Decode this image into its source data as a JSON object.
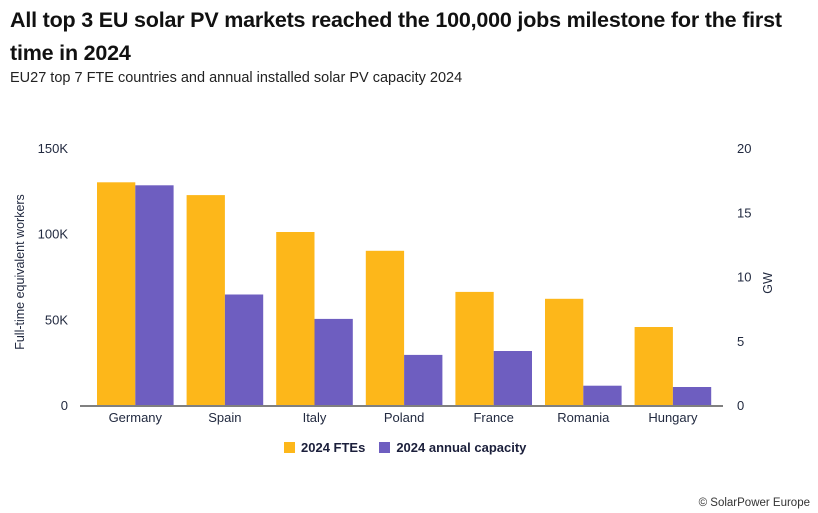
{
  "header": {
    "title": "All top 3 EU solar PV markets reached the 100,000 jobs milestone for the first time in 2024",
    "subtitle": "EU27 top 7 FTE countries and annual installed solar PV capacity 2024"
  },
  "credit": "© SolarPower Europe",
  "colors": {
    "fte": "#FDB71A",
    "capacity": "#6E5EC0",
    "baseline": "#808080"
  },
  "chart_data": {
    "type": "bar",
    "title": "EU27 top 7 FTE countries and annual installed solar PV capacity 2024",
    "categories": [
      "Germany",
      "Spain",
      "Italy",
      "Poland",
      "France",
      "Romania",
      "Hungary"
    ],
    "series": [
      {
        "name": "2024 FTEs",
        "axis": "left",
        "values": [
          130000,
          122500,
          101000,
          90000,
          66000,
          62000,
          45500
        ]
      },
      {
        "name": "2024 annual capacity",
        "axis": "right",
        "values": [
          17.1,
          8.6,
          6.7,
          3.9,
          4.2,
          1.5,
          1.4
        ]
      }
    ],
    "ylabel": "Full-time equivalent workers",
    "ylabel_right": "GW",
    "ylim": [
      0,
      150000
    ],
    "ylim_right": [
      0,
      20
    ],
    "yticks": [
      0,
      50000,
      100000,
      150000
    ],
    "ytick_labels": [
      "0",
      "50K",
      "100K",
      "150K"
    ],
    "yticks_right": [
      0,
      5,
      10,
      15,
      20
    ],
    "ytick_labels_right": [
      "0",
      "5",
      "10",
      "15",
      "20"
    ],
    "grid": false,
    "legend": "bottom-center"
  }
}
